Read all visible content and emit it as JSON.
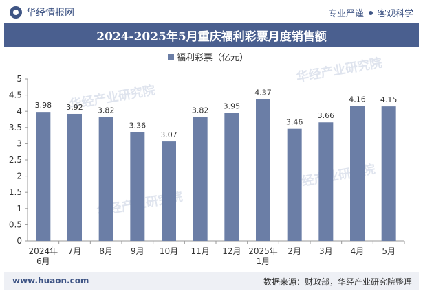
{
  "header": {
    "brand": "华经情报网",
    "motto_left": "专业严谨",
    "motto_right": "客观科学"
  },
  "title": "2024-2025年5月重庆福利彩票月度销售额",
  "watermark": "华经产业研究院",
  "footer": {
    "site": "www.huaon.com",
    "source": "数据来源：财政部，华经产业研究院整理"
  },
  "chart_data": {
    "type": "bar",
    "title": "2024-2025年5月重庆福利彩票月度销售额",
    "categories": [
      "2024年6月",
      "7月",
      "8月",
      "9月",
      "10月",
      "11月",
      "12月",
      "2025年1月",
      "2月",
      "3月",
      "4月",
      "5月"
    ],
    "series": [
      {
        "name": "福利彩票（亿元）",
        "values": [
          3.98,
          3.92,
          3.82,
          3.36,
          3.07,
          3.82,
          3.95,
          4.37,
          3.46,
          3.66,
          4.16,
          4.15
        ]
      }
    ],
    "yticks": [
      "0",
      "0.5",
      "1",
      "1.5",
      "2",
      "2.5",
      "3",
      "3.5",
      "4",
      "4.5",
      "5"
    ],
    "ylim": [
      0,
      5
    ],
    "legend_position": "top-center",
    "grid": false,
    "bar_color": "#6b7ea6"
  }
}
